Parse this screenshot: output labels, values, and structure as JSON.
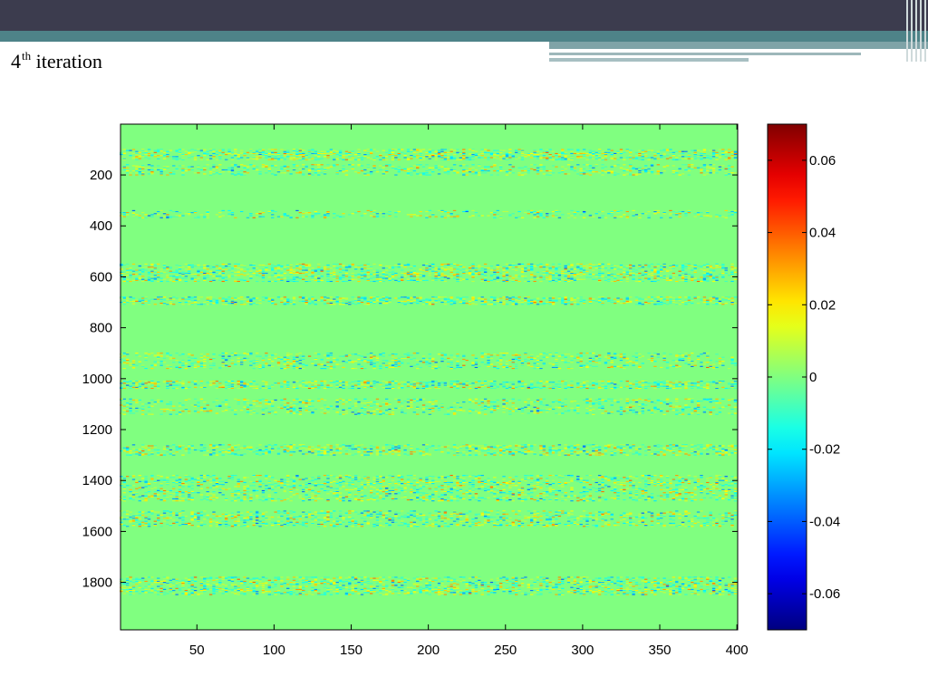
{
  "slide": {
    "title_number": "4",
    "title_superscript": "th",
    "title_rest": " iteration"
  },
  "theme": {
    "header_dark": "#3c3c4e",
    "header_teal": "#4e8388"
  },
  "chart_data": {
    "type": "heatmap",
    "title": "",
    "xlabel": "",
    "ylabel": "",
    "xlim": [
      1,
      400
    ],
    "ylim": [
      1,
      1986
    ],
    "y_reversed": true,
    "x_ticks": [
      50,
      100,
      150,
      200,
      250,
      300,
      350,
      400
    ],
    "y_ticks": [
      200,
      400,
      600,
      800,
      1000,
      1200,
      1400,
      1600,
      1800
    ],
    "x_tick_labels": [
      "50",
      "100",
      "150",
      "200",
      "250",
      "300",
      "350",
      "400"
    ],
    "y_tick_labels": [
      "200",
      "400",
      "600",
      "800",
      "1000",
      "1200",
      "1400",
      "1600",
      "1800"
    ],
    "colormap": "jet",
    "colorbar": {
      "range": [
        -0.07,
        0.07
      ],
      "ticks": [
        0.06,
        0.04,
        0.02,
        0,
        -0.02,
        -0.04,
        -0.06
      ],
      "tick_labels": [
        "0.06",
        "0.04",
        "0.02",
        "0",
        "-0.02",
        "-0.04",
        "-0.06"
      ]
    },
    "dominant_value": 0,
    "value_spread": 0.03,
    "noisy_row_bands": [
      {
        "rows": [
          100,
          140
        ],
        "intensity": 0.9
      },
      {
        "rows": [
          160,
          200
        ],
        "intensity": 0.55
      },
      {
        "rows": [
          340,
          370
        ],
        "intensity": 0.5
      },
      {
        "rows": [
          550,
          620
        ],
        "intensity": 0.8
      },
      {
        "rows": [
          680,
          710
        ],
        "intensity": 0.9
      },
      {
        "rows": [
          900,
          960
        ],
        "intensity": 0.55
      },
      {
        "rows": [
          1010,
          1040
        ],
        "intensity": 0.85
      },
      {
        "rows": [
          1080,
          1140
        ],
        "intensity": 0.5
      },
      {
        "rows": [
          1260,
          1300
        ],
        "intensity": 0.75
      },
      {
        "rows": [
          1380,
          1480
        ],
        "intensity": 0.6
      },
      {
        "rows": [
          1520,
          1580
        ],
        "intensity": 0.65
      },
      {
        "rows": [
          1780,
          1850
        ],
        "intensity": 0.8
      }
    ]
  }
}
